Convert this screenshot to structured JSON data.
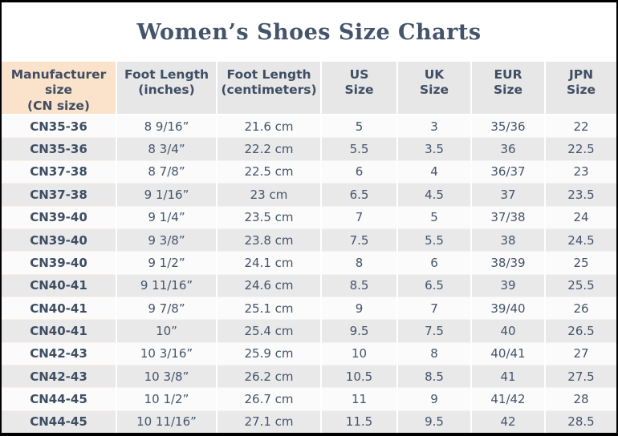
{
  "title": "Women’s Shoes Size Charts",
  "colors": {
    "frame_border": "#000000",
    "title_text": "#44546a",
    "header_bg": "#e7e7e7",
    "cn_column_bg": "#fce4cd",
    "row_odd_bg": "#fbfbfb",
    "row_even_bg": "#e9e9ea",
    "cell_text": "#44546a"
  },
  "chart_data": {
    "type": "table",
    "title": "Women’s Shoes Size Charts",
    "columns": [
      "Manufacturer size\n(CN size)",
      "Foot Length\n(inches)",
      "Foot Length\n(centimeters)",
      "US\nSize",
      "UK\nSize",
      "EUR\nSize",
      "JPN\nSize"
    ],
    "rows": [
      [
        "CN35-36",
        "8 9/16”",
        "21.6 cm",
        "5",
        "3",
        "35/36",
        "22"
      ],
      [
        "CN35-36",
        "8 3/4”",
        "22.2 cm",
        "5.5",
        "3.5",
        "36",
        "22.5"
      ],
      [
        "CN37-38",
        "8 7/8”",
        "22.5 cm",
        "6",
        "4",
        "36/37",
        "23"
      ],
      [
        "CN37-38",
        "9 1/16”",
        "23 cm",
        "6.5",
        "4.5",
        "37",
        "23.5"
      ],
      [
        "CN39-40",
        "9 1/4”",
        "23.5 cm",
        "7",
        "5",
        "37/38",
        "24"
      ],
      [
        "CN39-40",
        "9 3/8”",
        "23.8 cm",
        "7.5",
        "5.5",
        "38",
        "24.5"
      ],
      [
        "CN39-40",
        "9 1/2”",
        "24.1 cm",
        "8",
        "6",
        "38/39",
        "25"
      ],
      [
        "CN40-41",
        "9 11/16”",
        "24.6 cm",
        "8.5",
        "6.5",
        "39",
        "25.5"
      ],
      [
        "CN40-41",
        "9 7/8”",
        "25.1 cm",
        "9",
        "7",
        "39/40",
        "26"
      ],
      [
        "CN40-41",
        "10”",
        "25.4 cm",
        "9.5",
        "7.5",
        "40",
        "26.5"
      ],
      [
        "CN42-43",
        "10 3/16”",
        "25.9 cm",
        "10",
        "8",
        "40/41",
        "27"
      ],
      [
        "CN42-43",
        "10 3/8”",
        "26.2 cm",
        "10.5",
        "8.5",
        "41",
        "27.5"
      ],
      [
        "CN44-45",
        "10 1/2”",
        "26.7 cm",
        "11",
        "9",
        "41/42",
        "28"
      ],
      [
        "CN44-45",
        "10 11/16”",
        "27.1 cm",
        "11.5",
        "9.5",
        "42",
        "28.5"
      ]
    ]
  }
}
